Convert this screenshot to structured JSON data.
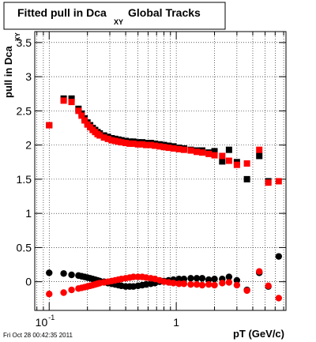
{
  "chart_data": {
    "type": "scatter",
    "title": {
      "text": "Fitted pull in Dca",
      "subscript": "XY",
      "suffix": "Global Tracks"
    },
    "y_label": {
      "text": "pull in Dca",
      "subscript": "XY"
    },
    "x_label": "pT (GeV/c)",
    "footer": "Fri Oct 28 00:42:35 2011",
    "log_x": true,
    "grid": true,
    "xlim": [
      0.077,
      7.3
    ],
    "ylim": [
      -0.42,
      3.66
    ],
    "xticks": [
      {
        "value": 0.1,
        "label": "10",
        "exponent": "-1"
      },
      1
    ],
    "xminor_ticks": [
      0.08,
      0.09,
      0.2,
      0.3,
      0.4,
      0.5,
      0.6,
      0.7,
      0.8,
      0.9,
      2,
      3,
      4,
      5,
      6,
      7
    ],
    "yticks": [
      0,
      0.5,
      1,
      1.5,
      2,
      2.5,
      3,
      3.5
    ],
    "x": [
      0.1,
      0.13,
      0.15,
      0.17,
      0.18,
      0.19,
      0.2,
      0.21,
      0.22,
      0.23,
      0.24,
      0.25,
      0.27,
      0.29,
      0.31,
      0.33,
      0.35,
      0.37,
      0.4,
      0.43,
      0.46,
      0.5,
      0.54,
      0.58,
      0.63,
      0.68,
      0.74,
      0.8,
      0.87,
      0.95,
      1.05,
      1.15,
      1.3,
      1.45,
      1.6,
      1.8,
      2.0,
      2.3,
      2.6,
      3.0,
      3.6,
      4.5,
      5.3,
      6.4
    ],
    "series": [
      {
        "color": "#000000",
        "marker": "square",
        "values": [
          2.29,
          2.68,
          2.68,
          2.53,
          2.46,
          2.39,
          2.33,
          2.29,
          2.25,
          2.22,
          2.19,
          2.17,
          2.14,
          2.12,
          2.1,
          2.09,
          2.08,
          2.07,
          2.06,
          2.05,
          2.05,
          2.04,
          2.04,
          2.03,
          2.03,
          2.02,
          2.01,
          2.0,
          1.99,
          1.98,
          1.96,
          1.95,
          1.93,
          1.92,
          1.92,
          1.89,
          1.91,
          1.76,
          1.93,
          1.75,
          1.5,
          1.84,
          1.47,
          null
        ]
      },
      {
        "color": "#ff0000",
        "marker": "square",
        "values": [
          2.29,
          2.65,
          2.63,
          2.5,
          2.43,
          2.36,
          2.3,
          2.26,
          2.22,
          2.19,
          2.16,
          2.14,
          2.11,
          2.09,
          2.07,
          2.06,
          2.05,
          2.04,
          2.03,
          2.02,
          2.02,
          2.01,
          2.01,
          2.0,
          2.0,
          1.99,
          1.98,
          1.97,
          1.96,
          1.95,
          1.94,
          1.93,
          1.92,
          1.9,
          1.89,
          1.87,
          1.85,
          1.84,
          1.77,
          1.71,
          1.73,
          1.93,
          1.45,
          1.47
        ]
      },
      {
        "color": "#000000",
        "marker": "circle",
        "values": [
          0.13,
          0.12,
          0.1,
          0.09,
          0.08,
          0.07,
          0.06,
          0.05,
          0.04,
          0.03,
          0.02,
          0.01,
          0.0,
          -0.02,
          -0.03,
          -0.04,
          -0.05,
          -0.06,
          -0.07,
          -0.07,
          -0.07,
          -0.06,
          -0.05,
          -0.04,
          -0.03,
          -0.02,
          0.0,
          0.01,
          0.02,
          0.03,
          0.04,
          0.04,
          0.05,
          0.05,
          0.05,
          0.03,
          0.04,
          0.04,
          0.07,
          0.02,
          -0.12,
          0.13,
          -0.07,
          0.37
        ]
      },
      {
        "color": "#ff0000",
        "marker": "circle",
        "values": [
          -0.18,
          -0.16,
          -0.12,
          -0.1,
          -0.09,
          -0.08,
          -0.07,
          -0.06,
          -0.05,
          -0.04,
          -0.03,
          -0.02,
          -0.01,
          0.0,
          0.01,
          0.02,
          0.03,
          0.04,
          0.05,
          0.06,
          0.07,
          0.07,
          0.07,
          0.06,
          0.05,
          0.04,
          0.02,
          0.0,
          -0.01,
          -0.02,
          -0.03,
          -0.03,
          -0.04,
          -0.04,
          -0.05,
          -0.04,
          -0.05,
          -0.02,
          -0.01,
          -0.05,
          -0.13,
          0.15,
          -0.06,
          -0.24
        ]
      }
    ]
  }
}
